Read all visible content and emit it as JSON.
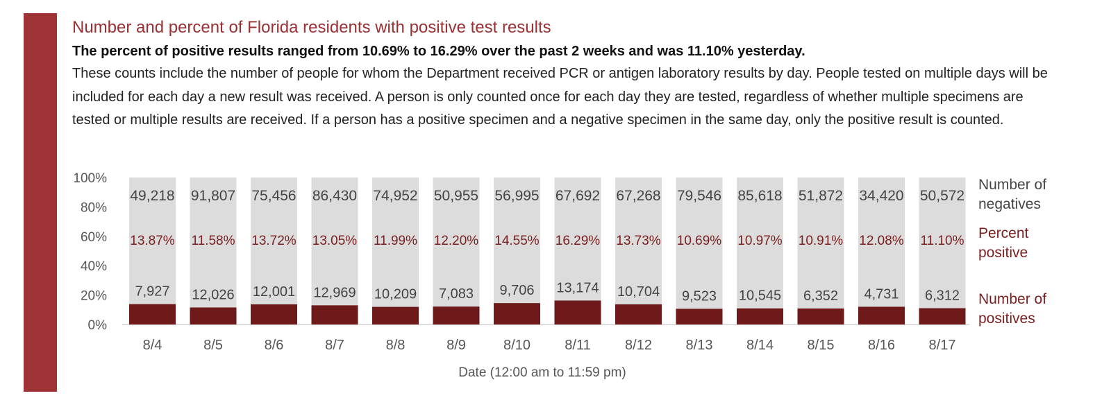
{
  "chart_data": {
    "type": "bar",
    "title": "Number and percent of Florida residents with positive test results",
    "subtitle": "The percent of positive results ranged from 10.69% to 16.29% over the past 2 weeks and was 11.10% yesterday.",
    "description": "These counts include the number of people for whom the Department received PCR or antigen laboratory results by day. People tested on multiple days will be included for each day a new result was received. A person is only counted once for each day they are tested, regardless of whether multiple specimens are tested or multiple results are received. If a person has a positive specimen and a negative specimen in the same day, only the positive result is counted.",
    "xlabel": "Date (12:00 am to 11:59 pm)",
    "ylabel": "",
    "ylim": [
      0,
      100
    ],
    "y_ticks": [
      "100%",
      "80%",
      "60%",
      "40%",
      "20%",
      "0%"
    ],
    "categories": [
      "8/4",
      "8/5",
      "8/6",
      "8/7",
      "8/8",
      "8/9",
      "8/10",
      "8/11",
      "8/12",
      "8/13",
      "8/14",
      "8/15",
      "8/16",
      "8/17"
    ],
    "series": [
      {
        "name": "Number of positives",
        "values": [
          7927,
          12026,
          12001,
          12969,
          10209,
          7083,
          9706,
          13174,
          10704,
          9523,
          10545,
          6352,
          4731,
          6312
        ],
        "labels": [
          "7,927",
          "12,026",
          "12,001",
          "12,969",
          "10,209",
          "7,083",
          "9,706",
          "13,174",
          "10,704",
          "9,523",
          "10,545",
          "6,352",
          "4,731",
          "6,312"
        ]
      },
      {
        "name": "Number of negatives",
        "values": [
          49218,
          91807,
          75456,
          86430,
          74952,
          50955,
          56995,
          67692,
          67268,
          79546,
          85618,
          51872,
          34420,
          50572
        ],
        "labels": [
          "49,218",
          "91,807",
          "75,456",
          "86,430",
          "74,952",
          "50,955",
          "56,995",
          "67,692",
          "67,268",
          "79,546",
          "85,618",
          "51,872",
          "34,420",
          "50,572"
        ]
      }
    ],
    "percent_positive": [
      13.87,
      11.58,
      13.72,
      13.05,
      11.99,
      12.2,
      14.55,
      16.29,
      13.73,
      10.69,
      10.97,
      10.91,
      12.08,
      11.1
    ],
    "percent_positive_labels": [
      "13.87%",
      "11.58%",
      "13.72%",
      "13.05%",
      "11.99%",
      "12.20%",
      "14.55%",
      "16.29%",
      "13.73%",
      "10.69%",
      "10.97%",
      "10.91%",
      "12.08%",
      "11.10%"
    ],
    "legend": {
      "negatives": [
        "Number of",
        "negatives"
      ],
      "percent": [
        "Percent",
        "positive"
      ],
      "positives": [
        "Number of",
        "positives"
      ]
    },
    "colors": {
      "accent": "#a03336",
      "title": "#9b2f32",
      "positive_bar": "#6e1a1a",
      "negative_bar": "#dcdcdc",
      "percent_text": "#7a1f1f",
      "count_text": "#444444"
    }
  }
}
